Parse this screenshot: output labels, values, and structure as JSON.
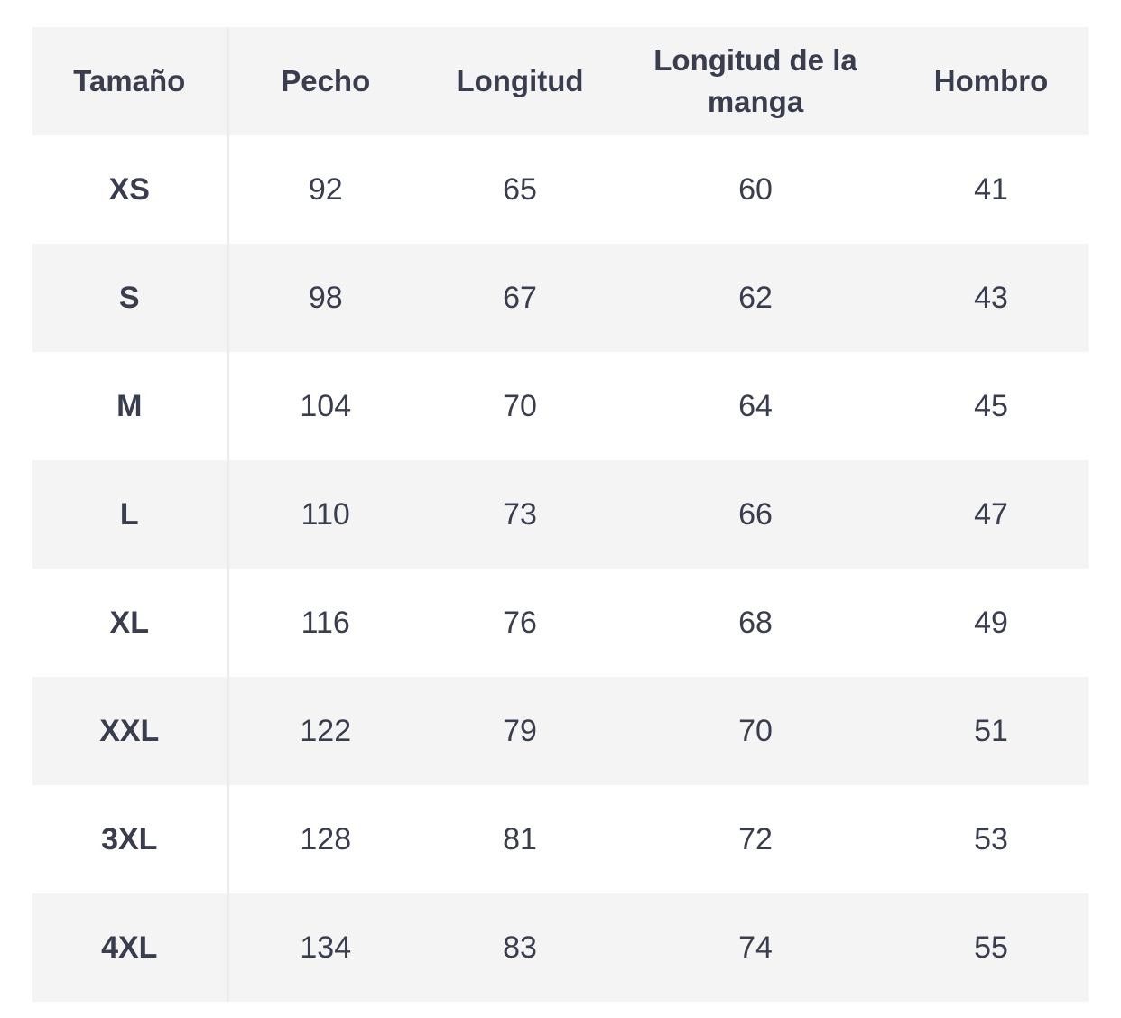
{
  "table": {
    "headers": {
      "size": "Tamaño",
      "chest": "Pecho",
      "length": "Longitud",
      "sleeve_length": "Longitud de la manga",
      "shoulder": "Hombro"
    },
    "rows": [
      {
        "size": "XS",
        "chest": "92",
        "length": "65",
        "sleeve_length": "60",
        "shoulder": "41"
      },
      {
        "size": "S",
        "chest": "98",
        "length": "67",
        "sleeve_length": "62",
        "shoulder": "43"
      },
      {
        "size": "M",
        "chest": "104",
        "length": "70",
        "sleeve_length": "64",
        "shoulder": "45"
      },
      {
        "size": "L",
        "chest": "110",
        "length": "73",
        "sleeve_length": "66",
        "shoulder": "47"
      },
      {
        "size": "XL",
        "chest": "116",
        "length": "76",
        "sleeve_length": "68",
        "shoulder": "49"
      },
      {
        "size": "XXL",
        "chest": "122",
        "length": "79",
        "sleeve_length": "70",
        "shoulder": "51"
      },
      {
        "size": "3XL",
        "chest": "128",
        "length": "81",
        "sleeve_length": "72",
        "shoulder": "53"
      },
      {
        "size": "4XL",
        "chest": "134",
        "length": "83",
        "sleeve_length": "74",
        "shoulder": "55"
      }
    ]
  },
  "colors": {
    "text": "#3a3d4d",
    "shaded_row": "#f4f4f5",
    "plain_row": "#ffffff",
    "divider": "#ececee"
  }
}
